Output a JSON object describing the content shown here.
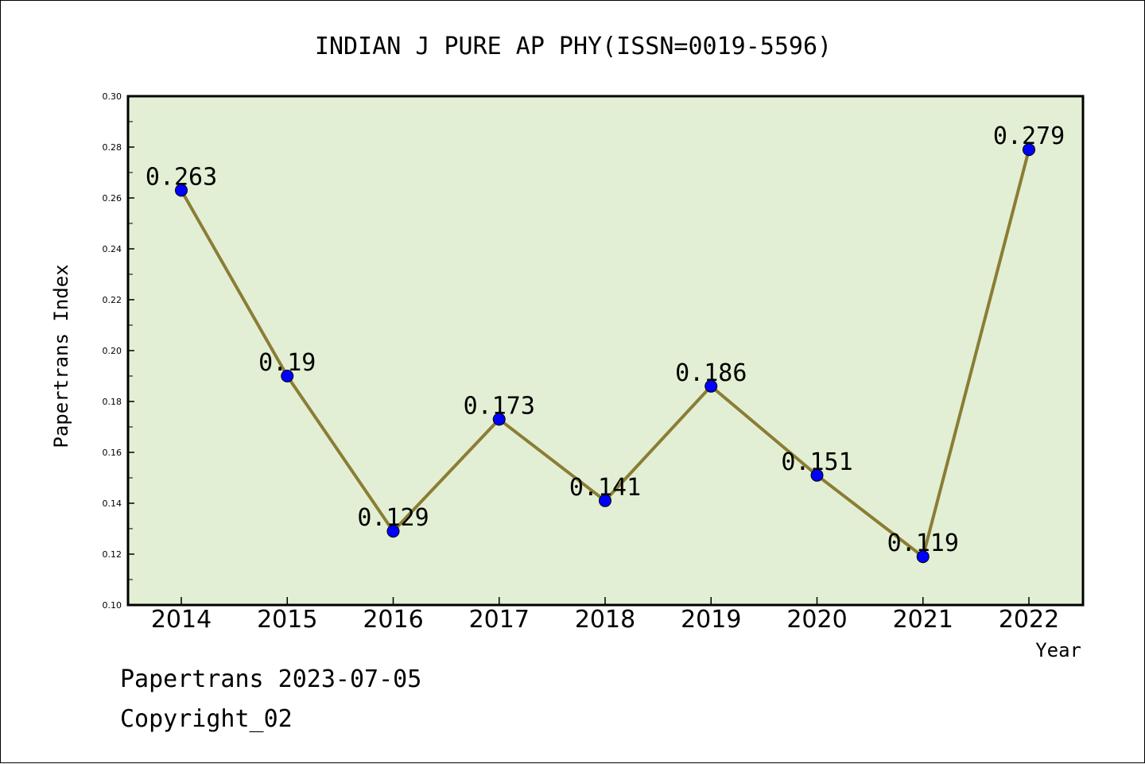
{
  "chart_data": {
    "type": "line",
    "title": "INDIAN J PURE AP PHY(ISSN=0019-5596)",
    "xlabel": "Year",
    "ylabel": "Papertrans Index",
    "categories": [
      "2014",
      "2015",
      "2016",
      "2017",
      "2018",
      "2019",
      "2020",
      "2021",
      "2022"
    ],
    "series": [
      {
        "values": [
          0.263,
          0.19,
          0.129,
          0.173,
          0.141,
          0.186,
          0.151,
          0.119,
          0.279
        ]
      }
    ],
    "data_labels": [
      "0.263",
      "0.19",
      "0.129",
      "0.173",
      "0.141",
      "0.186",
      "0.151",
      "0.119",
      "0.279"
    ],
    "ylim": [
      0.1,
      0.3
    ],
    "yticks": [
      "0.10",
      "0.12",
      "0.14",
      "0.16",
      "0.18",
      "0.20",
      "0.22",
      "0.24",
      "0.26",
      "0.28",
      "0.30"
    ],
    "grid": false,
    "legend": "none",
    "colors": {
      "plot_background": "#e2efd4",
      "line": "#8b7d35",
      "marker": "#0000ff"
    }
  },
  "footer": {
    "line1": "Papertrans 2023-07-05",
    "line2": "Copyright_02"
  }
}
